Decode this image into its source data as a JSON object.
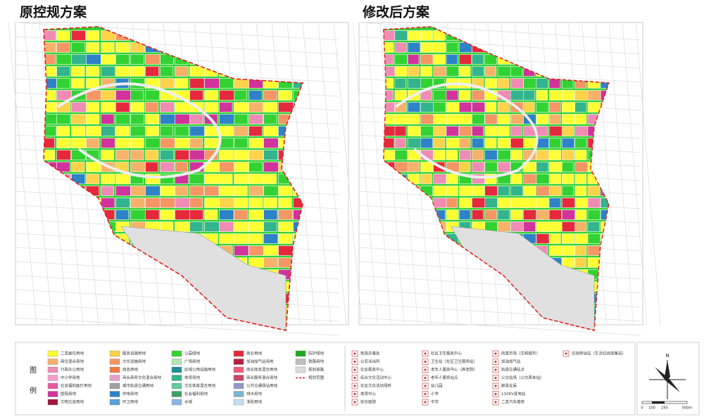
{
  "titles": {
    "original": "原控规方案",
    "revised": "修改后方案"
  },
  "legend": {
    "label_1": "图",
    "label_2": "例",
    "land_use": [
      {
        "label": "二类居住用地",
        "color": "#ffff33"
      },
      {
        "label": "商住混合用地",
        "color": "#f7b26a"
      },
      {
        "label": "行政办公用地",
        "color": "#f08cb4"
      },
      {
        "label": "中小学用地",
        "color": "#f5a0c8"
      },
      {
        "label": "社会福利医疗用地",
        "color": "#e65aa0"
      },
      {
        "label": "医院用地",
        "color": "#d2329b"
      },
      {
        "label": "文物古迹用地",
        "color": "#a0143c"
      },
      {
        "label": "服务设施用地",
        "color": "#ffd24b"
      },
      {
        "label": "文化设施用地",
        "color": "#f59664"
      },
      {
        "label": "商务用地",
        "color": "#f07846"
      },
      {
        "label": "商业商务文化混合用地",
        "color": "#e6a0c8"
      },
      {
        "label": "城市轨道交通用地",
        "color": "#a0a0a0"
      },
      {
        "label": "供电用地",
        "color": "#2d82c8"
      },
      {
        "label": "环卫用地",
        "color": "#5aa0d2"
      },
      {
        "label": "公园绿地",
        "color": "#32d232"
      },
      {
        "label": "广场用地",
        "color": "#b4e6b4"
      },
      {
        "label": "区域公用设施用地",
        "color": "#1e8c96"
      },
      {
        "label": "体育用地",
        "color": "#32b48c"
      },
      {
        "label": "文化体育混合用地",
        "color": "#64c8a0"
      },
      {
        "label": "社会福利用地",
        "color": "#3ca064"
      },
      {
        "label": "水域",
        "color": "#8cb4e6"
      },
      {
        "label": "商业用地",
        "color": "#e6283c"
      },
      {
        "label": "加油加气站用地",
        "color": "#b41e3c"
      },
      {
        "label": "商业商务混合用地",
        "color": "#f05a78"
      },
      {
        "label": "商业服务混合用地",
        "color": "#c84664"
      },
      {
        "label": "公共交通场站用地",
        "color": "#9696c8"
      },
      {
        "label": "排水用地",
        "color": "#78b4d2"
      },
      {
        "label": "消防用地",
        "color": "#c8dcf0"
      },
      {
        "label": "防护绿地",
        "color": "#1eaa1e"
      },
      {
        "label": "铁路用地",
        "color": "#bebebe"
      },
      {
        "label": "规划道路",
        "color": "#dcdcdc"
      },
      {
        "label": "规划范围",
        "color": "#e02020"
      }
    ],
    "facilities": [
      "街道办事处",
      "公安派出所",
      "社区服务中心",
      "综合文化活动中心",
      "社区文化活动场所",
      "体育中心",
      "综合医院",
      "社区卫生服务中心",
      "卫生站（社区卫生服务站）",
      "老年人服务中心（养老院）",
      "老年人服务站点",
      "幼儿园",
      "小学",
      "中学",
      "肉菜市场（生鲜超市）",
      "加油加气站",
      "轨道交通站点",
      "公交站场（公交首末站）",
      "邮政支局",
      "110KV变电站",
      "二类汽车维修",
      "垃圾转运站（生活垃圾收集站）"
    ],
    "north": "N",
    "scale": [
      "0",
      "100",
      "250",
      "500m"
    ]
  }
}
